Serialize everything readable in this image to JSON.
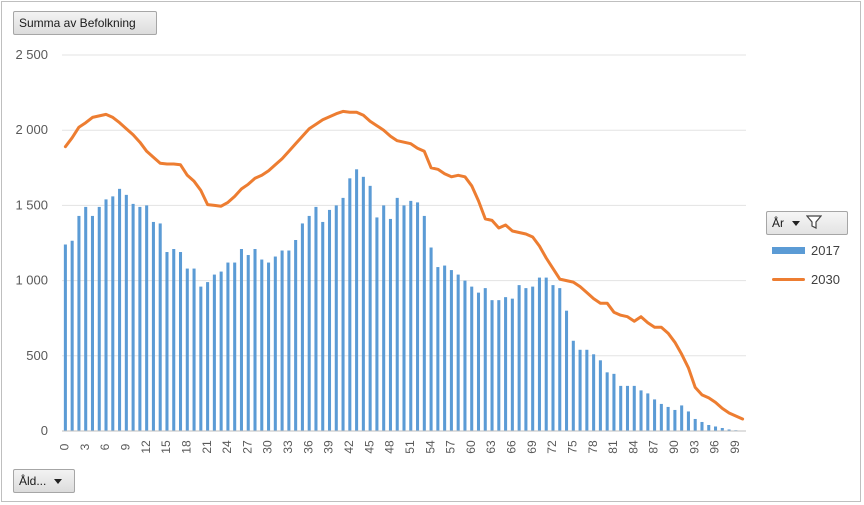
{
  "pivot": {
    "value_field": "Summa av Befolkning",
    "axis_field": "Åld...",
    "legend_field": "År"
  },
  "legend": {
    "items": [
      {
        "name": "2017",
        "kind": "bar",
        "color": "#5b9bd5"
      },
      {
        "name": "2030",
        "kind": "line",
        "color": "#ed7d31"
      }
    ]
  },
  "chart_data": {
    "type": "bar",
    "ylim": [
      0,
      2500
    ],
    "yticks": [
      0,
      500,
      1000,
      1500,
      2000,
      2500
    ],
    "ytick_labels": [
      "0",
      "500",
      "1 000",
      "1 500",
      "2 000",
      "2 500"
    ],
    "x": [
      0,
      1,
      2,
      3,
      4,
      5,
      6,
      7,
      8,
      9,
      10,
      11,
      12,
      13,
      14,
      15,
      16,
      17,
      18,
      19,
      20,
      21,
      22,
      23,
      24,
      25,
      26,
      27,
      28,
      29,
      30,
      31,
      32,
      33,
      34,
      35,
      36,
      37,
      38,
      39,
      40,
      41,
      42,
      43,
      44,
      45,
      46,
      47,
      48,
      49,
      50,
      51,
      52,
      53,
      54,
      55,
      56,
      57,
      58,
      59,
      60,
      61,
      62,
      63,
      64,
      65,
      66,
      67,
      68,
      69,
      70,
      71,
      72,
      73,
      74,
      75,
      76,
      77,
      78,
      79,
      80,
      81,
      82,
      83,
      84,
      85,
      86,
      87,
      88,
      89,
      90,
      91,
      92,
      93,
      94,
      95,
      96,
      97,
      98,
      99,
      100
    ],
    "x_tick_labels": [
      "0",
      "3",
      "6",
      "9",
      "12",
      "15",
      "18",
      "21",
      "24",
      "27",
      "30",
      "33",
      "36",
      "39",
      "42",
      "45",
      "48",
      "51",
      "54",
      "57",
      "60",
      "63",
      "66",
      "69",
      "72",
      "75",
      "78",
      "81",
      "84",
      "87",
      "90",
      "93",
      "96",
      "99"
    ],
    "x_tick_step": 3,
    "grid": true,
    "legend_position": "right",
    "series": [
      {
        "name": "2017",
        "kind": "bar",
        "color": "#5b9bd5",
        "values": [
          1240,
          1265,
          1430,
          1490,
          1430,
          1490,
          1540,
          1560,
          1610,
          1570,
          1510,
          1490,
          1500,
          1390,
          1380,
          1190,
          1210,
          1190,
          1080,
          1080,
          960,
          990,
          1040,
          1060,
          1120,
          1120,
          1210,
          1170,
          1210,
          1140,
          1120,
          1160,
          1200,
          1200,
          1270,
          1380,
          1430,
          1490,
          1390,
          1470,
          1500,
          1550,
          1680,
          1740,
          1690,
          1630,
          1420,
          1500,
          1410,
          1550,
          1500,
          1530,
          1520,
          1430,
          1220,
          1090,
          1100,
          1070,
          1040,
          1000,
          960,
          920,
          950,
          870,
          870,
          890,
          880,
          970,
          950,
          960,
          1020,
          1020,
          970,
          950,
          800,
          600,
          540,
          540,
          510,
          470,
          390,
          380,
          300,
          300,
          300,
          270,
          250,
          210,
          180,
          160,
          140,
          170,
          130,
          80,
          60,
          40,
          30,
          20,
          10,
          5,
          2
        ]
      },
      {
        "name": "2030",
        "kind": "line",
        "color": "#ed7d31",
        "values": [
          1890,
          1950,
          2020,
          2050,
          2085,
          2095,
          2105,
          2085,
          2050,
          2010,
          1970,
          1920,
          1860,
          1820,
          1780,
          1775,
          1775,
          1770,
          1700,
          1660,
          1600,
          1505,
          1500,
          1495,
          1520,
          1560,
          1610,
          1640,
          1680,
          1700,
          1730,
          1770,
          1810,
          1860,
          1910,
          1960,
          2010,
          2040,
          2070,
          2090,
          2110,
          2125,
          2120,
          2120,
          2100,
          2060,
          2030,
          2000,
          1960,
          1930,
          1920,
          1910,
          1880,
          1860,
          1750,
          1740,
          1710,
          1690,
          1700,
          1690,
          1630,
          1530,
          1410,
          1400,
          1350,
          1370,
          1330,
          1320,
          1310,
          1290,
          1230,
          1150,
          1080,
          1010,
          1000,
          990,
          960,
          920,
          880,
          850,
          850,
          790,
          770,
          760,
          730,
          760,
          720,
          690,
          690,
          650,
          590,
          510,
          420,
          290,
          240,
          220,
          190,
          150,
          120,
          100,
          80
        ]
      }
    ]
  }
}
